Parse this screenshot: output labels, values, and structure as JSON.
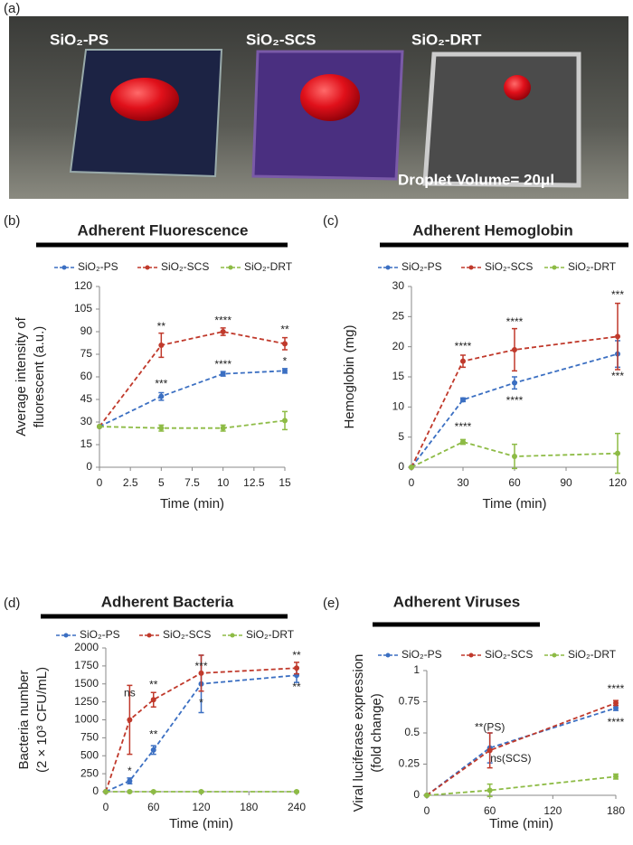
{
  "photo": {
    "panel_label": "(a)",
    "sample_labels": [
      "SiO₂-PS",
      "SiO₂-SCS",
      "SiO₂-DRT"
    ],
    "caption": "Droplet Volume= 20μl"
  },
  "chart_data": [
    {
      "type": "line",
      "panel_label": "(b)",
      "title": "Adherent Fluorescence",
      "xlabel": "Time (min)",
      "ylabel": [
        "Average intensity of",
        "fluorescent (a.u.)"
      ],
      "x": [
        0,
        5,
        10,
        15
      ],
      "xlim": [
        0,
        15
      ],
      "xticks": [
        0,
        2.5,
        5,
        7.5,
        10,
        12.5,
        15
      ],
      "ylim": [
        0,
        120
      ],
      "yticks": [
        0,
        15,
        30,
        45,
        60,
        75,
        90,
        105,
        120
      ],
      "series": [
        {
          "name": "SiO₂-PS",
          "color": "#3b6fc2",
          "values": [
            27,
            47,
            62,
            64
          ],
          "errors": [
            0,
            2.5,
            1.5,
            1.5
          ]
        },
        {
          "name": "SiO₂-SCS",
          "color": "#c0392b",
          "values": [
            27,
            81,
            90,
            82
          ],
          "errors": [
            0,
            8,
            2.5,
            4
          ]
        },
        {
          "name": "SiO₂-DRT",
          "color": "#8dbb45",
          "values": [
            27,
            26,
            26,
            31
          ],
          "errors": [
            0,
            2,
            2,
            6
          ]
        }
      ],
      "annotations": [
        {
          "text": "**",
          "x": 5,
          "y": 93
        },
        {
          "text": "***",
          "x": 5,
          "y": 55
        },
        {
          "text": "****",
          "x": 10,
          "y": 97
        },
        {
          "text": "****",
          "x": 10,
          "y": 68
        },
        {
          "text": "**",
          "x": 15,
          "y": 91
        },
        {
          "text": "*",
          "x": 15,
          "y": 70
        }
      ]
    },
    {
      "type": "line",
      "panel_label": "(c)",
      "title": "Adherent Hemoglobin",
      "xlabel": "Time (min)",
      "ylabel": [
        "Hemoglobin (mg)"
      ],
      "x": [
        0,
        30,
        60,
        120
      ],
      "xlim": [
        0,
        120
      ],
      "xticks": [
        0,
        30,
        60,
        90,
        120
      ],
      "ylim": [
        0,
        30
      ],
      "yticks": [
        0,
        5,
        10,
        15,
        20,
        25,
        30
      ],
      "series": [
        {
          "name": "SiO₂-PS",
          "color": "#3b6fc2",
          "values": [
            0,
            11.2,
            14,
            18.8
          ],
          "errors": [
            0,
            0.3,
            1,
            2.2
          ]
        },
        {
          "name": "SiO₂-SCS",
          "color": "#c0392b",
          "values": [
            0,
            17.6,
            19.5,
            21.7
          ],
          "errors": [
            0,
            1,
            3.5,
            5.5
          ]
        },
        {
          "name": "SiO₂-DRT",
          "color": "#8dbb45",
          "values": [
            0,
            4.2,
            1.8,
            2.3
          ],
          "errors": [
            0,
            0.4,
            2,
            3.3
          ]
        }
      ],
      "annotations": [
        {
          "text": "****",
          "x": 30,
          "y": 20
        },
        {
          "text": "****",
          "x": 30,
          "y": 6.6
        },
        {
          "text": "****",
          "x": 60,
          "y": 24
        },
        {
          "text": "****",
          "x": 60,
          "y": 11
        },
        {
          "text": "***",
          "x": 120,
          "y": 28.5
        },
        {
          "text": "***",
          "x": 120,
          "y": 15
        }
      ]
    },
    {
      "type": "line",
      "panel_label": "(d)",
      "title": "Adherent Bacteria",
      "xlabel": "Time (min)",
      "ylabel": [
        "Bacteria number",
        "(2 × 10³ CFU/mL)"
      ],
      "x": [
        0,
        30,
        60,
        120,
        240
      ],
      "xlim": [
        0,
        240
      ],
      "xticks": [
        0,
        60,
        120,
        180,
        240
      ],
      "ylim": [
        0,
        2000
      ],
      "yticks": [
        0,
        250,
        500,
        750,
        1000,
        1250,
        1500,
        1750,
        2000
      ],
      "series": [
        {
          "name": "SiO₂-PS",
          "color": "#3b6fc2",
          "values": [
            0,
            150,
            580,
            1500,
            1620
          ],
          "errors": [
            0,
            40,
            60,
            400,
            100
          ]
        },
        {
          "name": "SiO₂-SCS",
          "color": "#c0392b",
          "values": [
            0,
            1000,
            1280,
            1650,
            1720
          ],
          "errors": [
            0,
            480,
            100,
            250,
            80
          ]
        },
        {
          "name": "SiO₂-DRT",
          "color": "#8dbb45",
          "values": [
            0,
            0,
            0,
            0,
            0
          ],
          "errors": [
            0,
            10,
            10,
            10,
            10
          ]
        }
      ],
      "annotations": [
        {
          "text": "ns",
          "x": 30,
          "y": 1370
        },
        {
          "text": "*",
          "x": 30,
          "y": 280
        },
        {
          "text": "**",
          "x": 60,
          "y": 1480
        },
        {
          "text": "**",
          "x": 60,
          "y": 790
        },
        {
          "text": "***",
          "x": 120,
          "y": 1740
        },
        {
          "text": "*",
          "x": 120,
          "y": 1230
        },
        {
          "text": "**",
          "x": 240,
          "y": 1890
        },
        {
          "text": "**",
          "x": 240,
          "y": 1450
        }
      ]
    },
    {
      "type": "line",
      "panel_label": "(e)",
      "title": "Adherent Viruses",
      "xlabel": "Time (min)",
      "ylabel": [
        "Viral luciferase expression",
        "(fold change)"
      ],
      "x": [
        0,
        60,
        180
      ],
      "xlim": [
        0,
        180
      ],
      "xticks": [
        0,
        60,
        120,
        180
      ],
      "ylim": [
        0,
        1
      ],
      "yticks": [
        0,
        0.25,
        0.5,
        0.75,
        1
      ],
      "series": [
        {
          "name": "SiO₂-PS",
          "color": "#3b6fc2",
          "values": [
            0,
            0.38,
            0.7
          ],
          "errors": [
            0,
            0.12,
            0.02
          ]
        },
        {
          "name": "SiO₂-SCS",
          "color": "#c0392b",
          "values": [
            0,
            0.36,
            0.74
          ],
          "errors": [
            0,
            0.14,
            0.02
          ]
        },
        {
          "name": "SiO₂-DRT",
          "color": "#8dbb45",
          "values": [
            0,
            0.04,
            0.15
          ],
          "errors": [
            0,
            0.05,
            0.02
          ]
        }
      ],
      "annotations": [
        {
          "text": "**(PS)",
          "x": 60,
          "y": 0.54
        },
        {
          "text": "ns(SCS)",
          "x": 80,
          "y": 0.29
        },
        {
          "text": "****",
          "x": 180,
          "y": 0.85
        },
        {
          "text": "****",
          "x": 180,
          "y": 0.58
        }
      ]
    }
  ]
}
